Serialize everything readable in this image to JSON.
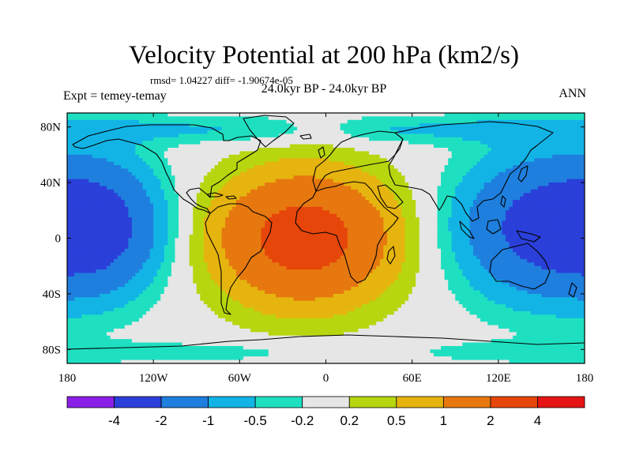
{
  "chart_data": {
    "type": "heatmap",
    "title": "Velocity Potential at 200 hPa (km2/s)",
    "stats_line": "rmsd= 1.04227 diff= -1.90674e-05",
    "period": "24.0kyr BP - 24.0kyr BP",
    "left_label": "Expt = temey-temay",
    "right_label": "ANN",
    "x_ticks": [
      "180",
      "120W",
      "60W",
      "0",
      "60E",
      "120E",
      "180"
    ],
    "x_tick_values": [
      -180,
      -120,
      -60,
      0,
      60,
      120,
      180
    ],
    "y_ticks": [
      "80N",
      "40N",
      "0",
      "40S",
      "80S"
    ],
    "y_tick_values": [
      80,
      40,
      0,
      -40,
      -80
    ],
    "xlim": [
      -180,
      180
    ],
    "ylim": [
      -90,
      90
    ],
    "colorbar": {
      "labels": [
        "-4",
        "-2",
        "-1",
        "-0.5",
        "-0.2",
        "0.2",
        "0.5",
        "1",
        "2",
        "4"
      ],
      "levels": [
        -4,
        -2,
        -1,
        -0.5,
        -0.2,
        0.2,
        0.5,
        1,
        2,
        4
      ],
      "colors": [
        "#8a1ee6",
        "#2b3fd9",
        "#1f7fde",
        "#12b4e6",
        "#1ee0c1",
        "#e6e6e6",
        "#b8d60f",
        "#e6b40f",
        "#e6780f",
        "#e6460a",
        "#e61414"
      ]
    },
    "field_centers": [
      {
        "name": "positive-atlantic-africa",
        "lon": -15,
        "lat": 0,
        "peak": 2.6
      },
      {
        "name": "negative-west-pacific",
        "lon": 148,
        "lat": 8,
        "peak": -2.4
      },
      {
        "name": "negative-central-pacific",
        "lon": -158,
        "lat": 8,
        "peak": -2.3
      }
    ]
  }
}
